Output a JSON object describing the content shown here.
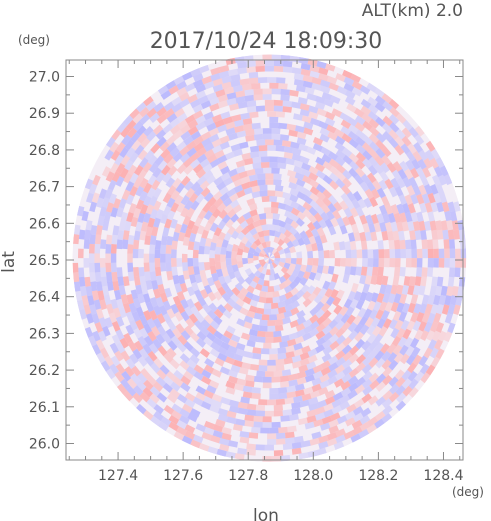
{
  "header": {
    "altitude_label": "ALT(km)  2.0",
    "timestamp": "2017/10/24  18:09:30"
  },
  "colors": {
    "positive": "#ff9a9a",
    "negative": "#a8a8ff",
    "frame": "#888888",
    "text": "#555555"
  },
  "chart_data": {
    "type": "heatmap",
    "title": "2017/10/24  18:09:30",
    "xlabel": "lon",
    "ylabel": "lat",
    "x_unit": "(deg)",
    "y_unit": "(deg)",
    "xlim": [
      127.24,
      128.46
    ],
    "ylim": [
      25.955,
      27.045
    ],
    "xticks": [
      127.4,
      127.6,
      127.8,
      128.0,
      128.2,
      128.4
    ],
    "yticks": [
      26.0,
      26.1,
      26.2,
      26.3,
      26.4,
      26.5,
      26.6,
      26.7,
      26.8,
      26.9,
      27.0
    ],
    "xtick_labels": [
      "127.4",
      "127.6",
      "127.8",
      "128.0",
      "128.2",
      "128.4"
    ],
    "ytick_labels": [
      "26.0",
      "26.1",
      "26.2",
      "26.3",
      "26.4",
      "26.5",
      "26.6",
      "26.7",
      "26.8",
      "26.9",
      "27.0"
    ],
    "radar_center": {
      "lon": 127.865,
      "lat": 26.505
    },
    "radar_range_deg": {
      "lon": 0.605,
      "lat": 0.555
    },
    "grid": false
  }
}
